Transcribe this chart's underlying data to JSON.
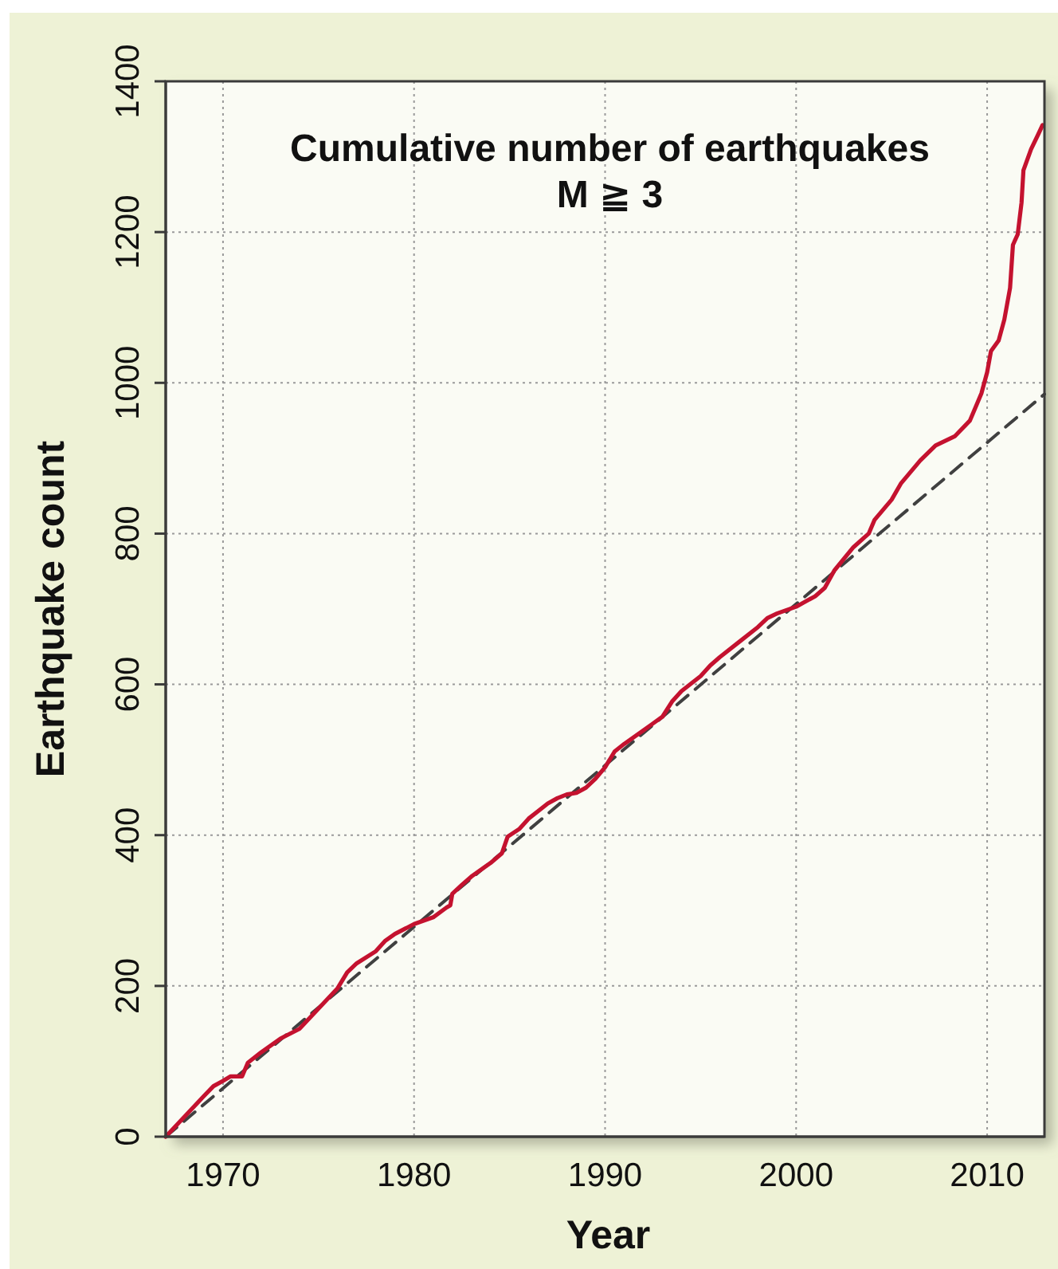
{
  "chart_data": {
    "type": "line",
    "title": "Cumulative number of earthquakes",
    "subtitle": "M ≧ 3",
    "xlabel": "Year",
    "ylabel": "Earthquake count",
    "xlim": [
      1967,
      2013
    ],
    "xticks": [
      1970,
      1980,
      1990,
      2000,
      2010
    ],
    "ylim": [
      0,
      1400
    ],
    "yticks": [
      0,
      200,
      400,
      600,
      800,
      1000,
      1200,
      1400
    ],
    "grid": true,
    "series": [
      {
        "color": "#c4122f",
        "line_style": "solid",
        "x": [
          1967.0,
          1968,
          1969,
          1969.5,
          1970,
          1970.4,
          1971,
          1971.3,
          1972,
          1973,
          1974,
          1975,
          1976,
          1976.5,
          1977,
          1978,
          1978.5,
          1979,
          1980,
          1981,
          1981.7,
          1981.9,
          1982,
          1982.5,
          1983,
          1984,
          1984.6,
          1984.9,
          1985.5,
          1986,
          1987,
          1987.5,
          1988,
          1988.5,
          1989,
          1989.5,
          1990,
          1990.5,
          1991,
          1992,
          1992.5,
          1993,
          1993.5,
          1994,
          1995,
          1995.5,
          1996,
          1997,
          1998,
          1998.5,
          1999,
          2000,
          2000.5,
          2001,
          2001.5,
          2002,
          2003,
          2003.8,
          2004.1,
          2005,
          2005.5,
          2006.5,
          2007.3,
          2008.3,
          2009.1,
          2009.7,
          2010.0,
          2010.2,
          2010.6,
          2010.9,
          2011.2,
          2011.35,
          2011.6,
          2011.8,
          2011.9,
          2012.3,
          2012.7,
          2012.9
        ],
        "values": [
          0,
          27,
          54,
          67,
          74,
          80,
          80,
          98,
          112,
          130,
          143,
          170,
          197,
          218,
          230,
          246,
          260,
          269,
          282,
          291,
          304,
          307,
          322,
          334,
          345,
          363,
          376,
          398,
          408,
          422,
          442,
          449,
          454,
          456,
          463,
          475,
          490,
          511,
          521,
          539,
          548,
          557,
          577,
          591,
          611,
          625,
          636,
          656,
          676,
          688,
          694,
          703,
          710,
          717,
          728,
          751,
          782,
          800,
          818,
          845,
          867,
          897,
          917,
          929,
          950,
          986,
          1014,
          1042,
          1056,
          1084,
          1126,
          1183,
          1197,
          1239,
          1282,
          1310,
          1331,
          1342
        ]
      },
      {
        "color": "#404040",
        "line_style": "dashed",
        "x": [
          1967,
          2013
        ],
        "values": [
          0,
          985
        ]
      }
    ]
  }
}
